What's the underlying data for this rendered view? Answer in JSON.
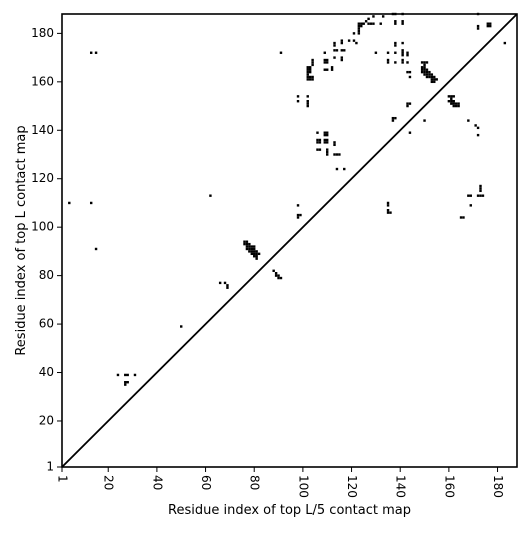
{
  "chart_data": {
    "type": "scatter",
    "title": "",
    "xlabel": "Residue index of top L/5 contact map",
    "ylabel": "Residue index of top L contact map",
    "xlim": [
      1,
      188
    ],
    "ylim": [
      1,
      188
    ],
    "x_ticks": [
      1,
      20,
      40,
      60,
      80,
      100,
      120,
      140,
      160,
      180
    ],
    "y_ticks": [
      1,
      20,
      40,
      60,
      80,
      100,
      120,
      140,
      160,
      180
    ],
    "x_tick_labels": [
      "1",
      "20",
      "40",
      "60",
      "80",
      "100",
      "120",
      "140",
      "160",
      "180"
    ],
    "y_tick_labels": [
      "1",
      "20",
      "40",
      "60",
      "80",
      "100",
      "120",
      "140",
      "160",
      "180"
    ],
    "x_tick_rotation_deg": 90,
    "grid": false,
    "diagonal": true,
    "marker": "square",
    "color": "#000000",
    "series": [
      {
        "points": [
          [
            4,
            110
          ],
          [
            13,
            172
          ],
          [
            15,
            172
          ],
          [
            13,
            110
          ],
          [
            15,
            91
          ],
          [
            24,
            39
          ],
          [
            27,
            39
          ],
          [
            28,
            39
          ],
          [
            31,
            39
          ],
          [
            27,
            36
          ],
          [
            28,
            36
          ],
          [
            27,
            35
          ],
          [
            50,
            59
          ],
          [
            62,
            113
          ],
          [
            66,
            77
          ],
          [
            68,
            77
          ],
          [
            69,
            76
          ],
          [
            69,
            75
          ],
          [
            76,
            94
          ],
          [
            77,
            94
          ],
          [
            76,
            93
          ],
          [
            77,
            93
          ],
          [
            78,
            93
          ],
          [
            77,
            92
          ],
          [
            78,
            92
          ],
          [
            79,
            92
          ],
          [
            80,
            92
          ],
          [
            77,
            91
          ],
          [
            78,
            91
          ],
          [
            79,
            91
          ],
          [
            80,
            91
          ],
          [
            78,
            90
          ],
          [
            79,
            90
          ],
          [
            80,
            90
          ],
          [
            81,
            90
          ],
          [
            79,
            89
          ],
          [
            80,
            89
          ],
          [
            81,
            89
          ],
          [
            82,
            89
          ],
          [
            80,
            88
          ],
          [
            81,
            88
          ],
          [
            81,
            87
          ],
          [
            88,
            82
          ],
          [
            89,
            81
          ],
          [
            89,
            80
          ],
          [
            90,
            80
          ],
          [
            90,
            79
          ],
          [
            91,
            79
          ],
          [
            91,
            172
          ],
          [
            98,
            154
          ],
          [
            98,
            152
          ],
          [
            98,
            109
          ],
          [
            98,
            105
          ],
          [
            99,
            105
          ],
          [
            98,
            104
          ],
          [
            102,
            154
          ],
          [
            102,
            152
          ],
          [
            102,
            151
          ],
          [
            102,
            150
          ],
          [
            102,
            166
          ],
          [
            103,
            166
          ],
          [
            102,
            165
          ],
          [
            103,
            165
          ],
          [
            102,
            164
          ],
          [
            103,
            164
          ],
          [
            102,
            163
          ],
          [
            102,
            162
          ],
          [
            103,
            162
          ],
          [
            104,
            162
          ],
          [
            102,
            161
          ],
          [
            103,
            161
          ],
          [
            104,
            161
          ],
          [
            104,
            169
          ],
          [
            104,
            168
          ],
          [
            104,
            167
          ],
          [
            106,
            139
          ],
          [
            106,
            136
          ],
          [
            107,
            136
          ],
          [
            106,
            135
          ],
          [
            107,
            135
          ],
          [
            106,
            132
          ],
          [
            107,
            132
          ],
          [
            109,
            139
          ],
          [
            110,
            139
          ],
          [
            109,
            138
          ],
          [
            110,
            138
          ],
          [
            109,
            136
          ],
          [
            110,
            136
          ],
          [
            109,
            135
          ],
          [
            110,
            135
          ],
          [
            110,
            132
          ],
          [
            110,
            131
          ],
          [
            110,
            130
          ],
          [
            109,
            172
          ],
          [
            109,
            169
          ],
          [
            110,
            169
          ],
          [
            109,
            168
          ],
          [
            110,
            168
          ],
          [
            109,
            165
          ],
          [
            110,
            165
          ],
          [
            112,
            166
          ],
          [
            112,
            165
          ],
          [
            113,
            170
          ],
          [
            113,
            176
          ],
          [
            113,
            175
          ],
          [
            113,
            173
          ],
          [
            114,
            173
          ],
          [
            113,
            135
          ],
          [
            113,
            134
          ],
          [
            113,
            130
          ],
          [
            114,
            130
          ],
          [
            115,
            130
          ],
          [
            114,
            124
          ],
          [
            117,
            124
          ],
          [
            116,
            177
          ],
          [
            116,
            176
          ],
          [
            116,
            173
          ],
          [
            117,
            173
          ],
          [
            116,
            170
          ],
          [
            116,
            169
          ],
          [
            119,
            177
          ],
          [
            121,
            180
          ],
          [
            121,
            177
          ],
          [
            122,
            176
          ],
          [
            123,
            184
          ],
          [
            124,
            184
          ],
          [
            125,
            184
          ],
          [
            123,
            183
          ],
          [
            124,
            183
          ],
          [
            123,
            182
          ],
          [
            123,
            181
          ],
          [
            123,
            180
          ],
          [
            126,
            185
          ],
          [
            127,
            184
          ],
          [
            128,
            184
          ],
          [
            127,
            186
          ],
          [
            129,
            187
          ],
          [
            129,
            184
          ],
          [
            130,
            172
          ],
          [
            132,
            184
          ],
          [
            133,
            187
          ],
          [
            135,
            172
          ],
          [
            135,
            169
          ],
          [
            135,
            168
          ],
          [
            135,
            110
          ],
          [
            135,
            109
          ],
          [
            135,
            107
          ],
          [
            135,
            106
          ],
          [
            136,
            106
          ],
          [
            137,
            188
          ],
          [
            138,
            188
          ],
          [
            138,
            185
          ],
          [
            138,
            184
          ],
          [
            138,
            176
          ],
          [
            138,
            175
          ],
          [
            138,
            172
          ],
          [
            138,
            168
          ],
          [
            141,
            188
          ],
          [
            141,
            185
          ],
          [
            141,
            184
          ],
          [
            141,
            176
          ],
          [
            141,
            173
          ],
          [
            141,
            172
          ],
          [
            141,
            171
          ],
          [
            141,
            169
          ],
          [
            141,
            168
          ],
          [
            137,
            145
          ],
          [
            138,
            145
          ],
          [
            137,
            144
          ],
          [
            143,
            172
          ],
          [
            143,
            171
          ],
          [
            143,
            168
          ],
          [
            143,
            164
          ],
          [
            144,
            164
          ],
          [
            144,
            162
          ],
          [
            143,
            151
          ],
          [
            144,
            151
          ],
          [
            143,
            150
          ],
          [
            144,
            139
          ],
          [
            149,
            168
          ],
          [
            150,
            168
          ],
          [
            151,
            168
          ],
          [
            150,
            167
          ],
          [
            149,
            166
          ],
          [
            150,
            166
          ],
          [
            149,
            165
          ],
          [
            150,
            165
          ],
          [
            151,
            165
          ],
          [
            149,
            164
          ],
          [
            150,
            164
          ],
          [
            151,
            164
          ],
          [
            152,
            164
          ],
          [
            150,
            163
          ],
          [
            151,
            163
          ],
          [
            152,
            163
          ],
          [
            153,
            163
          ],
          [
            151,
            162
          ],
          [
            152,
            162
          ],
          [
            153,
            162
          ],
          [
            154,
            162
          ],
          [
            153,
            161
          ],
          [
            154,
            161
          ],
          [
            155,
            161
          ],
          [
            153,
            160
          ],
          [
            154,
            160
          ],
          [
            150,
            144
          ],
          [
            160,
            154
          ],
          [
            161,
            154
          ],
          [
            162,
            154
          ],
          [
            161,
            153
          ],
          [
            160,
            152
          ],
          [
            161,
            152
          ],
          [
            162,
            152
          ],
          [
            161,
            151
          ],
          [
            162,
            151
          ],
          [
            163,
            151
          ],
          [
            164,
            151
          ],
          [
            162,
            150
          ],
          [
            163,
            150
          ],
          [
            164,
            150
          ],
          [
            165,
            104
          ],
          [
            166,
            104
          ],
          [
            168,
            144
          ],
          [
            168,
            113
          ],
          [
            169,
            113
          ],
          [
            169,
            109
          ],
          [
            171,
            142
          ],
          [
            172,
            141
          ],
          [
            172,
            138
          ],
          [
            173,
            117
          ],
          [
            173,
            116
          ],
          [
            173,
            115
          ],
          [
            172,
            113
          ],
          [
            173,
            113
          ],
          [
            174,
            113
          ],
          [
            172,
            188
          ],
          [
            172,
            183
          ],
          [
            172,
            182
          ],
          [
            176,
            184
          ],
          [
            177,
            184
          ],
          [
            176,
            183
          ],
          [
            177,
            183
          ],
          [
            183,
            176
          ]
        ]
      }
    ]
  }
}
